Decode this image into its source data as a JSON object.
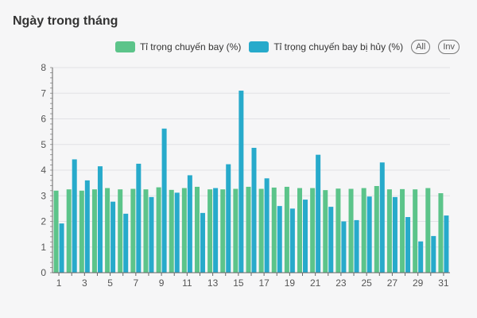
{
  "title": "Ngày trong tháng",
  "legend": {
    "controls": {
      "all": "All",
      "inv": "Inv"
    }
  },
  "colors": {
    "series0": "#5cc48a",
    "series1": "#27aacb"
  },
  "chart_data": {
    "type": "bar",
    "title": "Ngày trong tháng",
    "x": [
      1,
      2,
      3,
      4,
      5,
      6,
      7,
      8,
      9,
      10,
      11,
      12,
      13,
      14,
      15,
      16,
      17,
      18,
      19,
      20,
      21,
      22,
      23,
      24,
      25,
      26,
      27,
      28,
      29,
      30,
      31
    ],
    "x_tick_labels": [
      "1",
      "3",
      "5",
      "7",
      "9",
      "11",
      "13",
      "15",
      "17",
      "19",
      "21",
      "23",
      "25",
      "27",
      "29",
      "31"
    ],
    "ylim": [
      0,
      8
    ],
    "y_ticks": [
      0,
      1,
      2,
      3,
      4,
      5,
      6,
      7,
      8
    ],
    "series": [
      {
        "name": "Tỉ trọng chuyến bay (%)",
        "color": "#5cc48a",
        "values": [
          3.2,
          3.25,
          3.2,
          3.25,
          3.3,
          3.25,
          3.27,
          3.25,
          3.33,
          3.23,
          3.3,
          3.35,
          3.25,
          3.25,
          3.27,
          3.35,
          3.27,
          3.32,
          3.35,
          3.3,
          3.3,
          3.22,
          3.28,
          3.27,
          3.3,
          3.38,
          3.25,
          3.26,
          3.25,
          3.3,
          3.1
        ]
      },
      {
        "name": "Tỉ trọng chuyến bay bị hủy (%)",
        "color": "#27aacb",
        "values": [
          1.92,
          4.42,
          3.6,
          4.15,
          2.77,
          2.3,
          4.25,
          2.95,
          5.62,
          3.12,
          3.8,
          2.33,
          3.3,
          4.23,
          7.1,
          4.87,
          3.68,
          2.6,
          2.5,
          2.85,
          4.6,
          2.57,
          2.0,
          2.05,
          2.97,
          4.3,
          2.95,
          2.17,
          1.22,
          1.43,
          2.23
        ]
      }
    ],
    "grid": true,
    "legend_position": "top-right"
  }
}
